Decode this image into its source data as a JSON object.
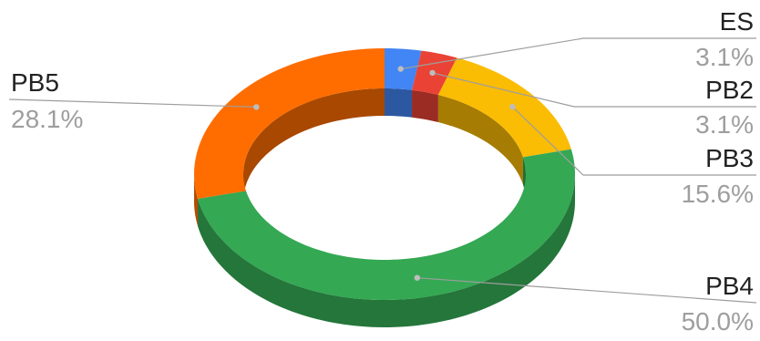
{
  "chart_data": {
    "type": "pie",
    "style": "3d-donut",
    "title": "",
    "legend": "none",
    "slices": [
      {
        "label": "ES",
        "value": 3.1,
        "value_label": "3.1%",
        "color": "#4285f4"
      },
      {
        "label": "PB2",
        "value": 3.1,
        "value_label": "3.1%",
        "color": "#ea4335"
      },
      {
        "label": "PB3",
        "value": 15.6,
        "value_label": "15.6%",
        "color": "#fbbc04"
      },
      {
        "label": "PB4",
        "value": 50.0,
        "value_label": "50.0%",
        "color": "#34a853"
      },
      {
        "label": "PB5",
        "value": 28.1,
        "value_label": "28.1%",
        "color": "#ff6d01"
      }
    ]
  }
}
